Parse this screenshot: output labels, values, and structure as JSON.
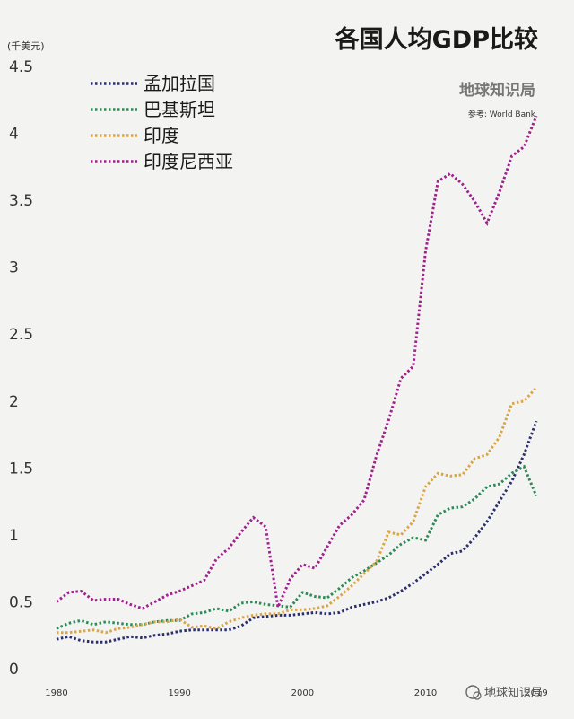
{
  "chart_data": {
    "type": "line",
    "title": "各国人均GDP比较",
    "unit_label": "(千美元)",
    "source": "参考: World Bank",
    "brand": "地球知识局",
    "watermark": "地球知识局",
    "ylim": [
      0,
      4.5
    ],
    "yticks": [
      "0",
      "0.5",
      "1",
      "1.5",
      "2",
      "2.5",
      "3",
      "3.5",
      "4",
      "4.5"
    ],
    "xlim": [
      1980,
      2019
    ],
    "xticks": [
      "1980",
      "1990",
      "2000",
      "2010",
      "2019"
    ],
    "legend_position": "top-left",
    "x": [
      1980,
      1981,
      1982,
      1983,
      1984,
      1985,
      1986,
      1987,
      1988,
      1989,
      1990,
      1991,
      1992,
      1993,
      1994,
      1995,
      1996,
      1997,
      1998,
      1999,
      2000,
      2001,
      2002,
      2003,
      2004,
      2005,
      2006,
      2007,
      2008,
      2009,
      2010,
      2011,
      2012,
      2013,
      2014,
      2015,
      2016,
      2017,
      2018,
      2019
    ],
    "series": [
      {
        "name": "孟加拉国",
        "color": "#2b2f6b",
        "values": [
          0.22,
          0.24,
          0.21,
          0.2,
          0.2,
          0.22,
          0.24,
          0.23,
          0.25,
          0.26,
          0.28,
          0.29,
          0.29,
          0.29,
          0.29,
          0.32,
          0.38,
          0.39,
          0.4,
          0.4,
          0.41,
          0.42,
          0.41,
          0.42,
          0.46,
          0.48,
          0.5,
          0.53,
          0.58,
          0.64,
          0.71,
          0.78,
          0.86,
          0.88,
          0.98,
          1.1,
          1.25,
          1.4,
          1.6,
          1.85
        ]
      },
      {
        "name": "巴基斯坦",
        "color": "#2e8a57",
        "values": [
          0.3,
          0.34,
          0.36,
          0.33,
          0.35,
          0.34,
          0.33,
          0.33,
          0.35,
          0.36,
          0.36,
          0.41,
          0.42,
          0.45,
          0.43,
          0.49,
          0.5,
          0.48,
          0.47,
          0.46,
          0.57,
          0.54,
          0.53,
          0.6,
          0.68,
          0.73,
          0.79,
          0.85,
          0.93,
          0.98,
          0.96,
          1.15,
          1.2,
          1.21,
          1.27,
          1.36,
          1.38,
          1.46,
          1.51,
          1.29
        ]
      },
      {
        "name": "印度",
        "color": "#d9a545",
        "values": [
          0.27,
          0.27,
          0.28,
          0.29,
          0.27,
          0.3,
          0.31,
          0.33,
          0.35,
          0.35,
          0.37,
          0.31,
          0.32,
          0.3,
          0.35,
          0.38,
          0.4,
          0.41,
          0.41,
          0.44,
          0.44,
          0.45,
          0.47,
          0.54,
          0.62,
          0.71,
          0.8,
          1.02,
          1.0,
          1.1,
          1.36,
          1.46,
          1.44,
          1.45,
          1.57,
          1.6,
          1.73,
          1.98,
          2.0,
          2.1
        ]
      },
      {
        "name": "印度尼西亚",
        "color": "#a0208e",
        "values": [
          0.5,
          0.57,
          0.58,
          0.51,
          0.52,
          0.52,
          0.48,
          0.45,
          0.5,
          0.55,
          0.58,
          0.62,
          0.66,
          0.82,
          0.9,
          1.02,
          1.13,
          1.06,
          0.46,
          0.67,
          0.78,
          0.75,
          0.91,
          1.07,
          1.15,
          1.26,
          1.59,
          1.86,
          2.17,
          2.26,
          3.12,
          3.64,
          3.7,
          3.62,
          3.49,
          3.33,
          3.56,
          3.83,
          3.9,
          4.13
        ]
      }
    ]
  }
}
